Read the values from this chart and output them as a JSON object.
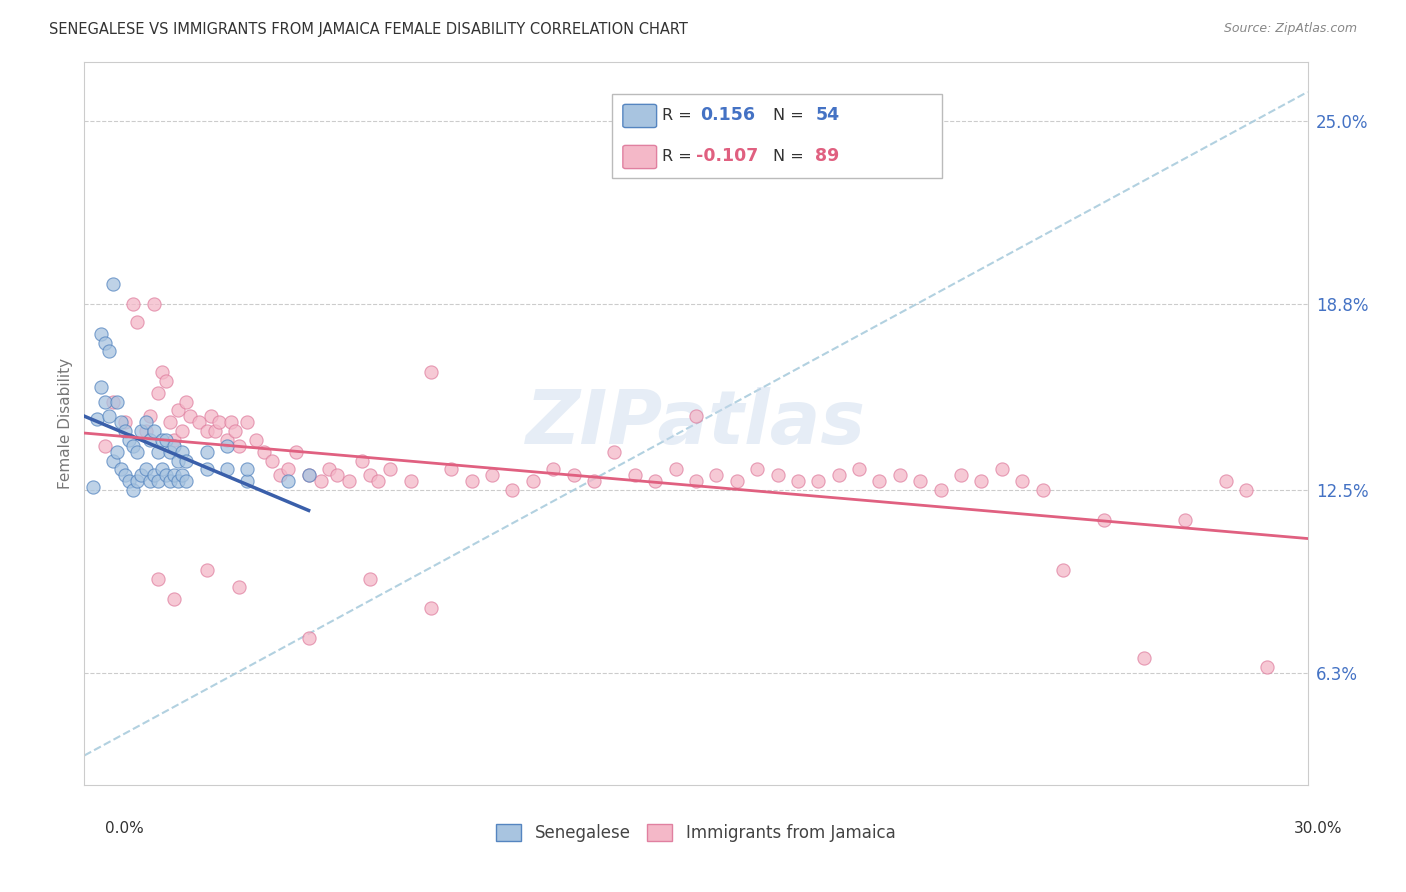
{
  "title": "SENEGALESE VS IMMIGRANTS FROM JAMAICA FEMALE DISABILITY CORRELATION CHART",
  "source": "Source: ZipAtlas.com",
  "ylabel": "Female Disability",
  "y_ticks_pct": [
    6.3,
    12.5,
    18.8,
    25.0
  ],
  "y_tick_labels": [
    "6.3%",
    "12.5%",
    "18.8%",
    "25.0%"
  ],
  "xmin": 0.0,
  "xmax": 0.3,
  "ymin": 0.025,
  "ymax": 0.27,
  "color_senegalese": "#a8c4e0",
  "color_jamaica": "#f4b8c8",
  "edge_senegalese": "#5585c0",
  "edge_jamaica": "#e080a0",
  "trendline_blue": "#3a5faa",
  "trendline_pink": "#e06080",
  "dashed_color": "#aaccdd",
  "watermark": "ZIPatlas",
  "legend_R1_text": "R =  0.156",
  "legend_N1_text": "N = 54",
  "legend_R2_text": "R = -0.107",
  "legend_N2_text": "N = 89",
  "blue_val": "0.156",
  "blue_n": "54",
  "pink_val": "-0.107",
  "pink_n": "89",
  "senegalese_x": [
    0.002,
    0.003,
    0.004,
    0.004,
    0.005,
    0.005,
    0.006,
    0.006,
    0.007,
    0.007,
    0.008,
    0.008,
    0.009,
    0.009,
    0.01,
    0.01,
    0.011,
    0.011,
    0.012,
    0.012,
    0.013,
    0.013,
    0.014,
    0.014,
    0.015,
    0.015,
    0.016,
    0.016,
    0.017,
    0.017,
    0.018,
    0.018,
    0.019,
    0.019,
    0.02,
    0.02,
    0.021,
    0.021,
    0.022,
    0.022,
    0.023,
    0.023,
    0.024,
    0.024,
    0.025,
    0.025,
    0.03,
    0.03,
    0.035,
    0.035,
    0.04,
    0.04,
    0.05,
    0.055
  ],
  "senegalese_y": [
    0.126,
    0.149,
    0.16,
    0.178,
    0.155,
    0.175,
    0.15,
    0.172,
    0.135,
    0.195,
    0.138,
    0.155,
    0.132,
    0.148,
    0.13,
    0.145,
    0.128,
    0.142,
    0.125,
    0.14,
    0.128,
    0.138,
    0.13,
    0.145,
    0.132,
    0.148,
    0.128,
    0.142,
    0.13,
    0.145,
    0.128,
    0.138,
    0.132,
    0.142,
    0.13,
    0.142,
    0.128,
    0.138,
    0.13,
    0.14,
    0.128,
    0.135,
    0.13,
    0.138,
    0.128,
    0.135,
    0.132,
    0.138,
    0.132,
    0.14,
    0.128,
    0.132,
    0.128,
    0.13
  ],
  "jamaica_x": [
    0.005,
    0.007,
    0.01,
    0.012,
    0.013,
    0.015,
    0.016,
    0.017,
    0.018,
    0.019,
    0.02,
    0.021,
    0.022,
    0.023,
    0.024,
    0.025,
    0.026,
    0.028,
    0.03,
    0.031,
    0.032,
    0.033,
    0.035,
    0.036,
    0.037,
    0.038,
    0.04,
    0.042,
    0.044,
    0.046,
    0.048,
    0.05,
    0.052,
    0.055,
    0.058,
    0.06,
    0.062,
    0.065,
    0.068,
    0.07,
    0.072,
    0.075,
    0.08,
    0.085,
    0.09,
    0.095,
    0.1,
    0.105,
    0.11,
    0.115,
    0.12,
    0.125,
    0.13,
    0.135,
    0.14,
    0.145,
    0.15,
    0.155,
    0.16,
    0.165,
    0.17,
    0.175,
    0.18,
    0.185,
    0.19,
    0.195,
    0.2,
    0.205,
    0.21,
    0.215,
    0.22,
    0.225,
    0.23,
    0.235,
    0.24,
    0.25,
    0.26,
    0.27,
    0.28,
    0.285,
    0.018,
    0.022,
    0.03,
    0.038,
    0.055,
    0.07,
    0.085,
    0.15,
    0.29
  ],
  "jamaica_y": [
    0.14,
    0.155,
    0.148,
    0.188,
    0.182,
    0.145,
    0.15,
    0.188,
    0.158,
    0.165,
    0.162,
    0.148,
    0.142,
    0.152,
    0.145,
    0.155,
    0.15,
    0.148,
    0.145,
    0.15,
    0.145,
    0.148,
    0.142,
    0.148,
    0.145,
    0.14,
    0.148,
    0.142,
    0.138,
    0.135,
    0.13,
    0.132,
    0.138,
    0.13,
    0.128,
    0.132,
    0.13,
    0.128,
    0.135,
    0.13,
    0.128,
    0.132,
    0.128,
    0.165,
    0.132,
    0.128,
    0.13,
    0.125,
    0.128,
    0.132,
    0.13,
    0.128,
    0.138,
    0.13,
    0.128,
    0.132,
    0.128,
    0.13,
    0.128,
    0.132,
    0.13,
    0.128,
    0.128,
    0.13,
    0.132,
    0.128,
    0.13,
    0.128,
    0.125,
    0.13,
    0.128,
    0.132,
    0.128,
    0.125,
    0.098,
    0.115,
    0.068,
    0.115,
    0.128,
    0.125,
    0.095,
    0.088,
    0.098,
    0.092,
    0.075,
    0.095,
    0.085,
    0.15,
    0.065
  ]
}
